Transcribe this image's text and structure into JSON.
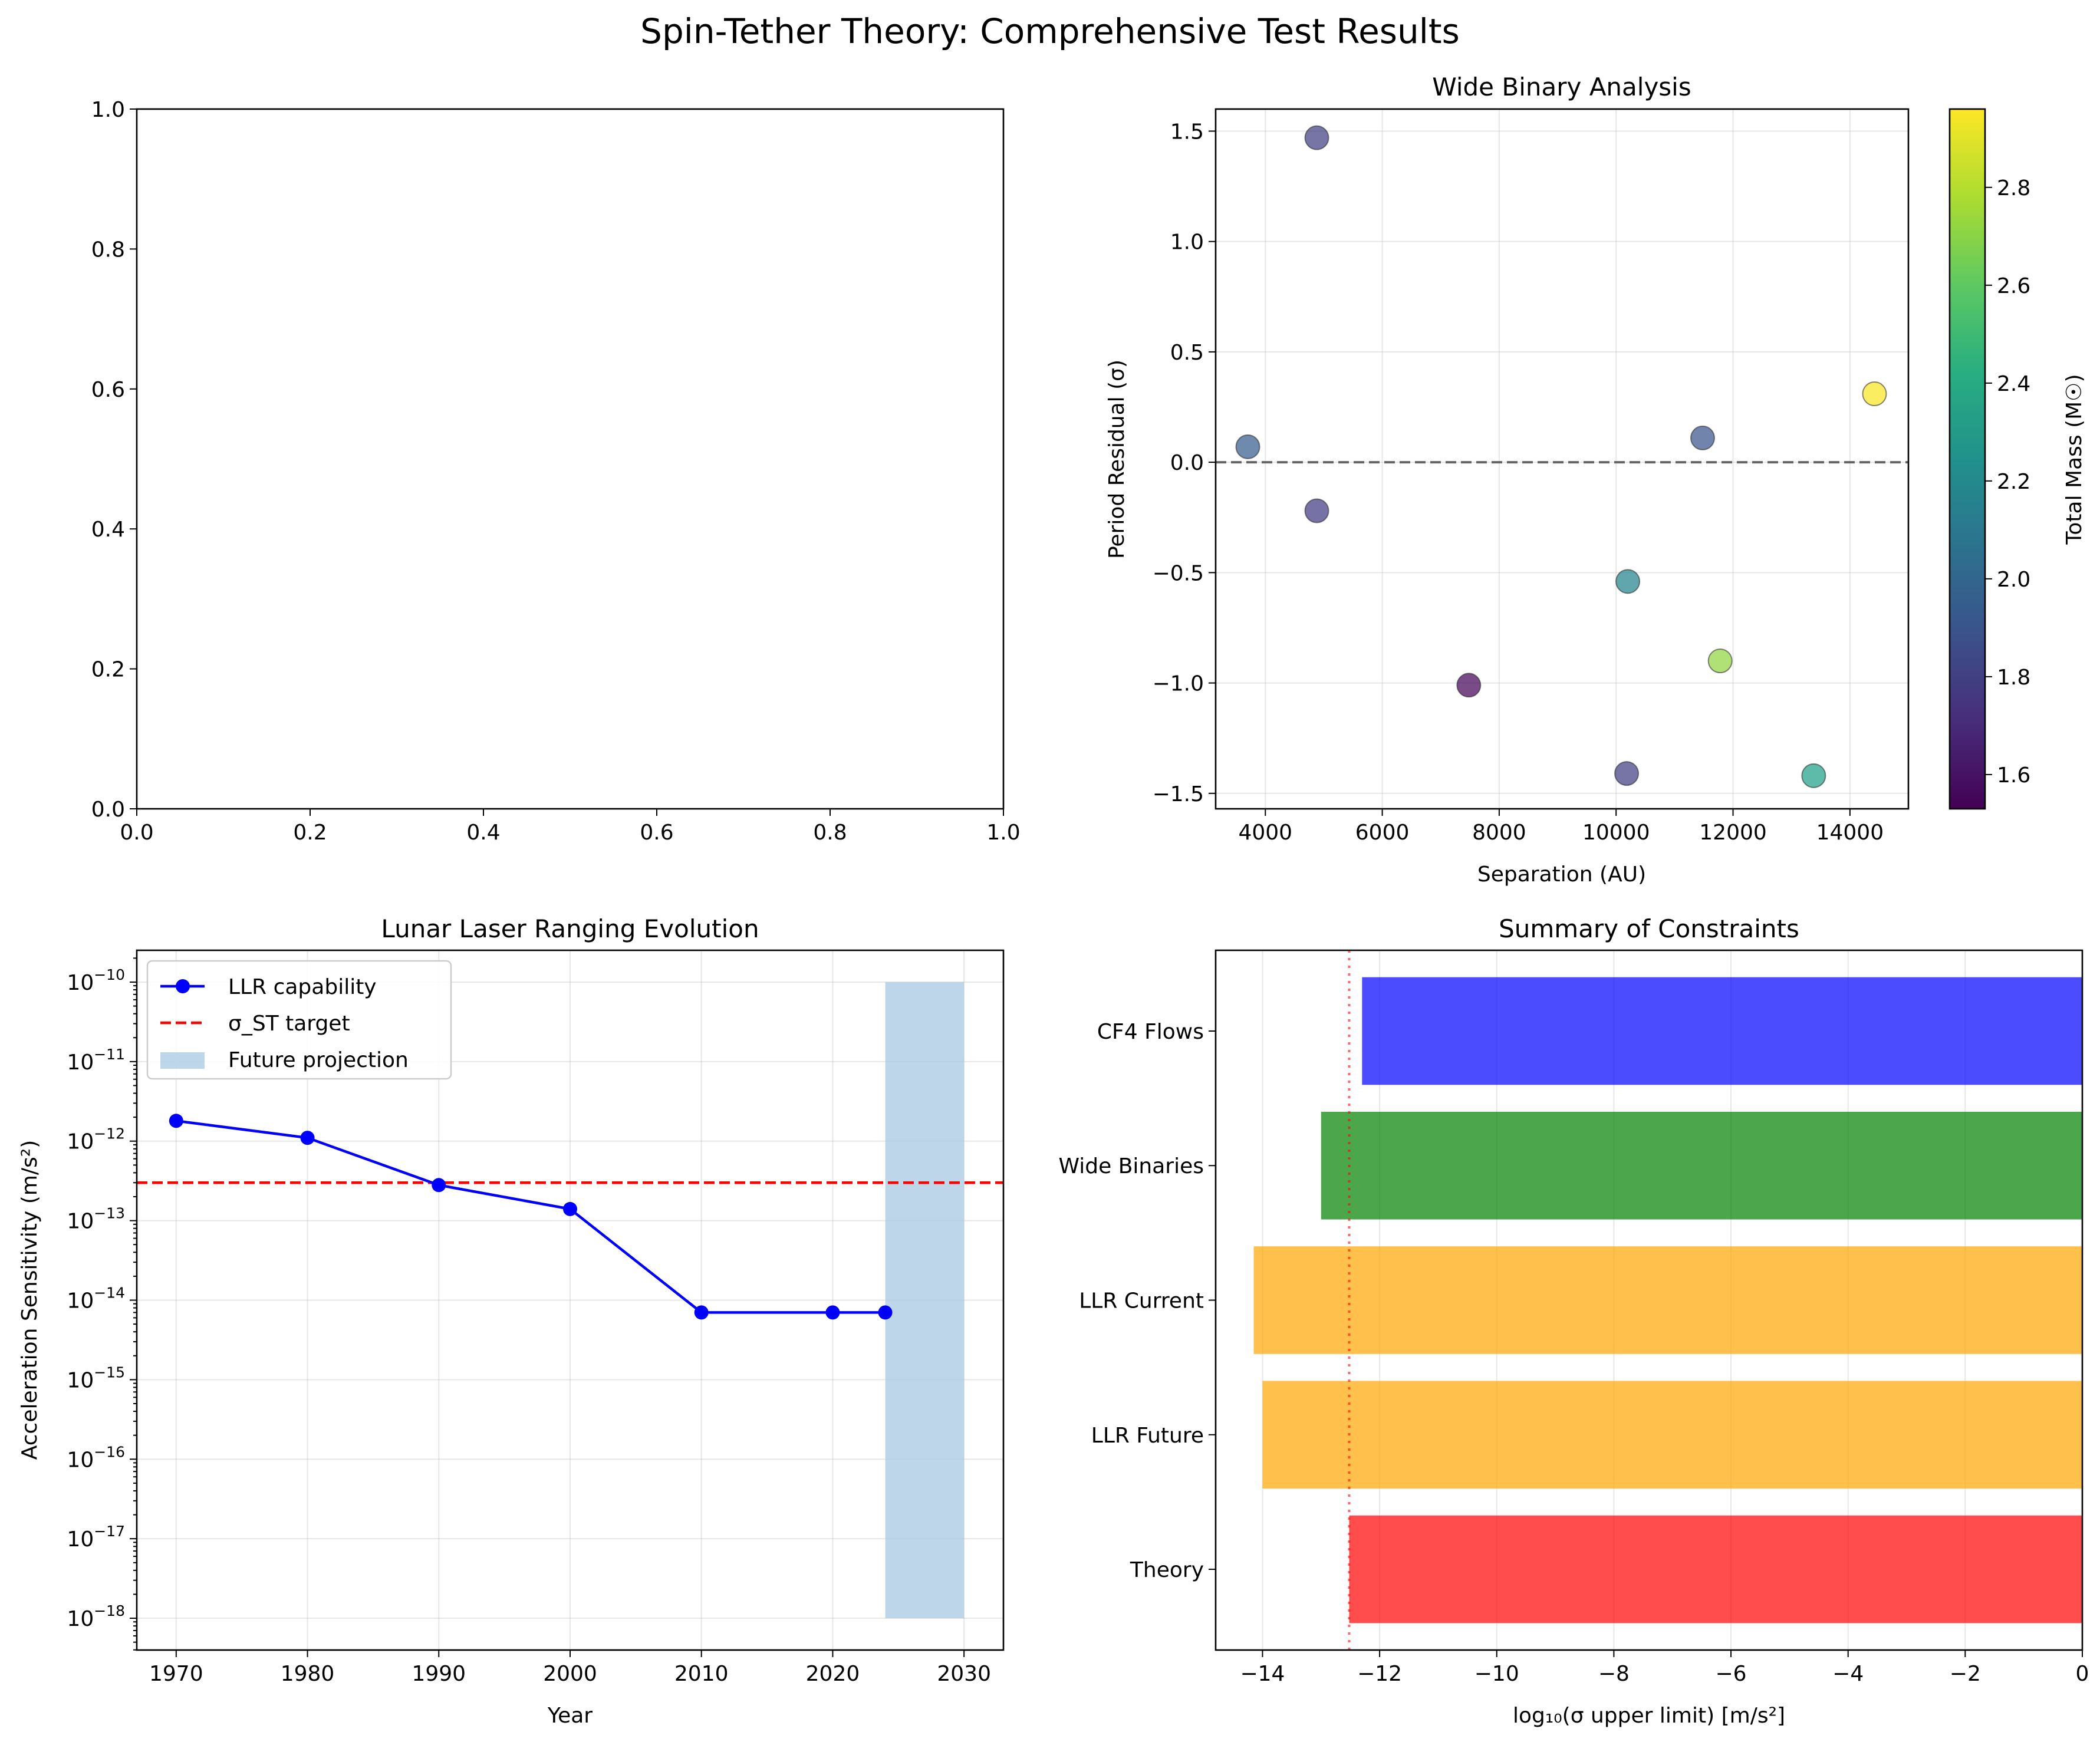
{
  "figure": {
    "suptitle": "Spin-Tether Theory: Comprehensive Test Results"
  },
  "chart_data": [
    {
      "type": "empty",
      "panel": "top-left",
      "title": "",
      "xlabel": "",
      "ylabel": "",
      "xlim": [
        0,
        1
      ],
      "ylim": [
        0,
        1
      ],
      "xticks": [
        "0.0",
        "0.2",
        "0.4",
        "0.6",
        "0.8",
        "1.0"
      ],
      "yticks": [
        "0.0",
        "0.2",
        "0.4",
        "0.6",
        "0.8",
        "1.0"
      ]
    },
    {
      "type": "scatter",
      "panel": "top-right",
      "title": "Wide Binary Analysis",
      "xlabel": "Separation (AU)",
      "ylabel": "Period Residual (σ)",
      "xlim": [
        3150,
        15000
      ],
      "ylim": [
        -1.57,
        1.6
      ],
      "grid": true,
      "xticks": [
        "4000",
        "6000",
        "8000",
        "10000",
        "12000",
        "14000"
      ],
      "yticks": [
        "−1.5",
        "−1.0",
        "−0.5",
        "0.0",
        "0.5",
        "1.0",
        "1.5"
      ],
      "reference_line": {
        "y": 0,
        "style": "dashed",
        "color": "#555555"
      },
      "points": [
        {
          "x": 3700,
          "y": 0.07,
          "mass": 1.95
        },
        {
          "x": 4880,
          "y": 1.47,
          "mass": 1.8
        },
        {
          "x": 4880,
          "y": -0.22,
          "mass": 1.78
        },
        {
          "x": 7480,
          "y": -1.01,
          "mass": 1.55
        },
        {
          "x": 10180,
          "y": -1.41,
          "mass": 1.8
        },
        {
          "x": 10200,
          "y": -0.54,
          "mass": 2.17
        },
        {
          "x": 11480,
          "y": 0.11,
          "mass": 1.9
        },
        {
          "x": 11780,
          "y": -0.9,
          "mass": 2.72
        },
        {
          "x": 13380,
          "y": -1.42,
          "mass": 2.33
        },
        {
          "x": 14420,
          "y": 0.31,
          "mass": 2.95
        }
      ],
      "colorbar": {
        "label": "Total Mass (M☉)",
        "colormap": "viridis",
        "range": [
          1.53,
          2.96
        ],
        "ticks": [
          "1.6",
          "1.8",
          "2.0",
          "2.2",
          "2.4",
          "2.6",
          "2.8"
        ]
      }
    },
    {
      "type": "line",
      "panel": "bottom-left",
      "title": "Lunar Laser Ranging Evolution",
      "xlabel": "Year",
      "ylabel": "Acceleration Sensitivity (m/s²)",
      "yscale": "log",
      "xlim": [
        1967,
        2033
      ],
      "ylim_exp": [
        -18.4,
        -9.6
      ],
      "grid": true,
      "xticks": [
        "1970",
        "1980",
        "1990",
        "2000",
        "2010",
        "2020",
        "2030"
      ],
      "yticks_exp": [
        "−18",
        "−17",
        "−16",
        "−15",
        "−14",
        "−13",
        "−12",
        "−11",
        "−10"
      ],
      "series": [
        {
          "name": "LLR capability",
          "color": "#0000ff",
          "x": [
            1970,
            1980,
            1990,
            2000,
            2010,
            2020,
            2024
          ],
          "y": [
            1.8e-12,
            1.1e-12,
            2.8e-13,
            1.4e-13,
            7e-15,
            7e-15,
            7e-15
          ]
        }
      ],
      "hline": {
        "name": "σ_ST target",
        "y": 3e-13,
        "color": "#ff0000",
        "style": "dashed"
      },
      "span": {
        "name": "Future projection",
        "x": [
          2024,
          2030
        ],
        "y": [
          1e-18,
          1e-10
        ],
        "color": "#a7c8e2"
      },
      "legend": "upper-left"
    },
    {
      "type": "bar",
      "orientation": "horizontal",
      "panel": "bottom-right",
      "title": "Summary of Constraints",
      "xlabel": "log₁₀(σ upper limit) [m/s²]",
      "xlim": [
        -14.8,
        0
      ],
      "grid": true,
      "xticks": [
        "−14",
        "−12",
        "−10",
        "−8",
        "−6",
        "−4",
        "−2",
        "0"
      ],
      "categories": [
        "CF4 Flows",
        "Wide Binaries",
        "LLR Current",
        "LLR Future",
        "Theory"
      ],
      "values": [
        -12.3,
        -13.0,
        -14.15,
        -14.0,
        -12.52
      ],
      "colors": [
        "#0000ff",
        "#008000",
        "#ffa500",
        "#ffa500",
        "#ff0000"
      ],
      "reference_line": {
        "x": -12.52,
        "style": "dotted",
        "color": "#ff0000"
      }
    }
  ]
}
